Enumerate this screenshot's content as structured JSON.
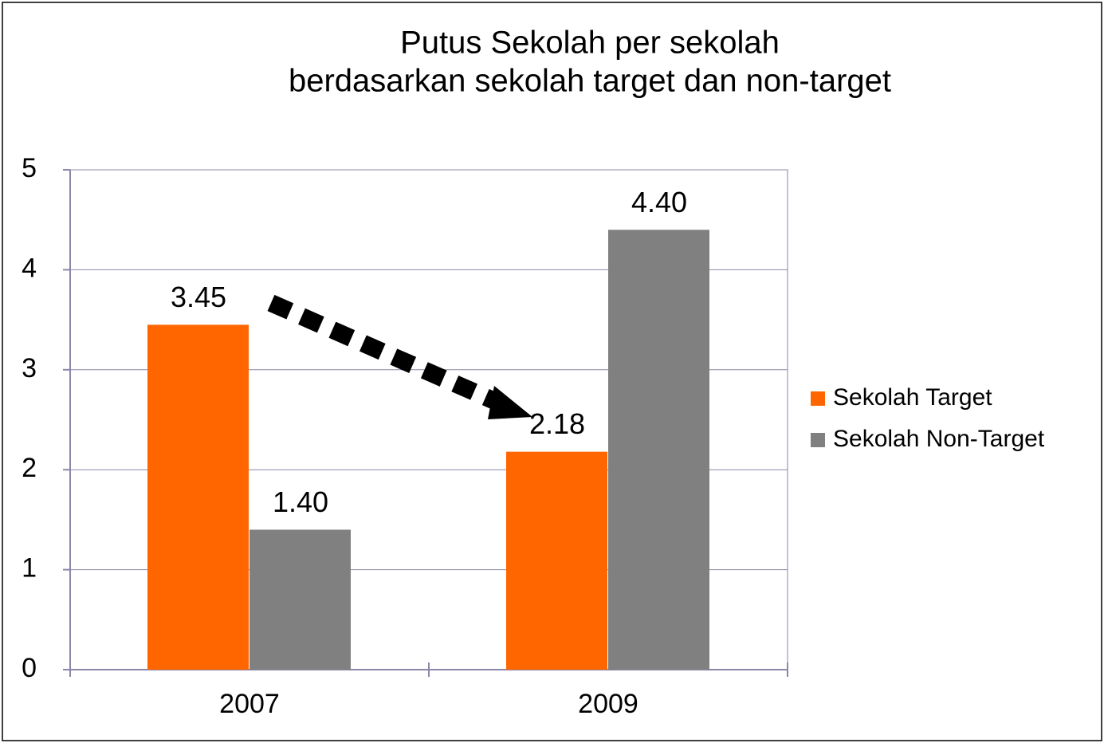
{
  "chart_data": {
    "type": "bar",
    "title": [
      "Putus Sekolah per sekolah",
      "berdasarkan sekolah target dan non-target"
    ],
    "categories": [
      "2007",
      "2009"
    ],
    "series": [
      {
        "name": "Sekolah Target",
        "color": "#ff6600",
        "values": [
          3.45,
          2.18
        ],
        "value_labels": [
          "3.45",
          "2.18"
        ]
      },
      {
        "name": "Sekolah Non-Target",
        "color": "#808080",
        "values": [
          1.4,
          4.4
        ],
        "value_labels": [
          "1.40",
          "4.40"
        ]
      }
    ],
    "ylim": [
      0,
      5
    ],
    "yticks": [
      0,
      1,
      2,
      3,
      4,
      5
    ],
    "grid": true,
    "legend": "right"
  }
}
